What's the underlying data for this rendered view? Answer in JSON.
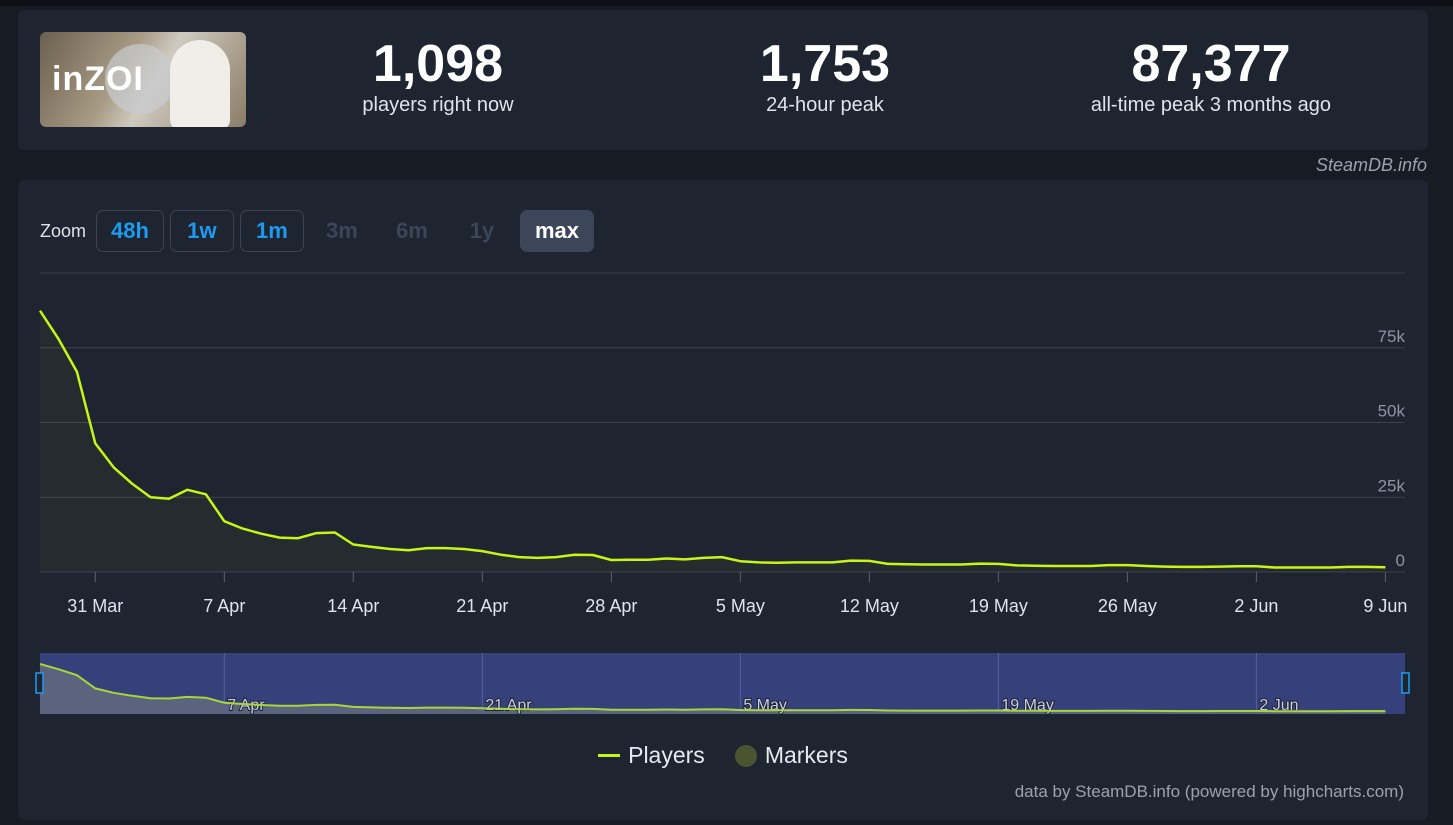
{
  "header": {
    "logo_text": "inZOI",
    "stats": [
      {
        "value": "1,098",
        "label": "players right now"
      },
      {
        "value": "1,753",
        "label": "24-hour peak"
      },
      {
        "value": "87,377",
        "label": "all-time peak 3 months ago"
      }
    ],
    "credit": "SteamDB.info"
  },
  "zoom": {
    "label": "Zoom",
    "buttons": [
      {
        "label": "48h",
        "state": "enabled"
      },
      {
        "label": "1w",
        "state": "enabled"
      },
      {
        "label": "1m",
        "state": "enabled"
      },
      {
        "label": "3m",
        "state": "disabled"
      },
      {
        "label": "6m",
        "state": "disabled"
      },
      {
        "label": "1y",
        "state": "disabled"
      },
      {
        "label": "max",
        "state": "active"
      }
    ]
  },
  "legend": {
    "players": "Players",
    "markers": "Markers"
  },
  "footer_credit": "data by SteamDB.info (powered by highcharts.com)",
  "colors": {
    "players": "#c6f516",
    "markers": "#4a5530",
    "accent": "#1d9bf0",
    "navigator": "#36407a"
  },
  "chart_data": {
    "type": "area",
    "ylim": [
      0,
      100000
    ],
    "y_ticks": [
      "0",
      "25k",
      "50k",
      "75k"
    ],
    "y_tick_values": [
      0,
      25000,
      50000,
      75000
    ],
    "x_ticks": [
      "31 Mar",
      "7 Apr",
      "14 Apr",
      "21 Apr",
      "28 Apr",
      "5 May",
      "12 May",
      "19 May",
      "26 May",
      "2 Jun",
      "9 Jun"
    ],
    "navigator_ticks": [
      "7 Apr",
      "21 Apr",
      "5 May",
      "19 May",
      "2 Jun"
    ],
    "grid": true,
    "legend": "bottom",
    "x_start": "28 Mar",
    "series": [
      {
        "name": "Players",
        "values": [
          87377,
          78000,
          67000,
          43000,
          35000,
          29500,
          25000,
          24500,
          27500,
          26000,
          17000,
          14500,
          12800,
          11500,
          11300,
          13000,
          13200,
          9200,
          8400,
          7700,
          7300,
          8000,
          8000,
          7700,
          7000,
          5800,
          5000,
          4700,
          5000,
          5800,
          5700,
          4000,
          4100,
          4100,
          4500,
          4200,
          4700,
          5000,
          3600,
          3200,
          3100,
          3200,
          3200,
          3200,
          3800,
          3700,
          2700,
          2600,
          2500,
          2500,
          2500,
          2800,
          2700,
          2200,
          2100,
          2000,
          2000,
          2000,
          2300,
          2300,
          2000,
          1800,
          1700,
          1700,
          1800,
          1900,
          1900,
          1500,
          1500,
          1500,
          1500,
          1700,
          1700,
          1600
        ]
      }
    ]
  }
}
